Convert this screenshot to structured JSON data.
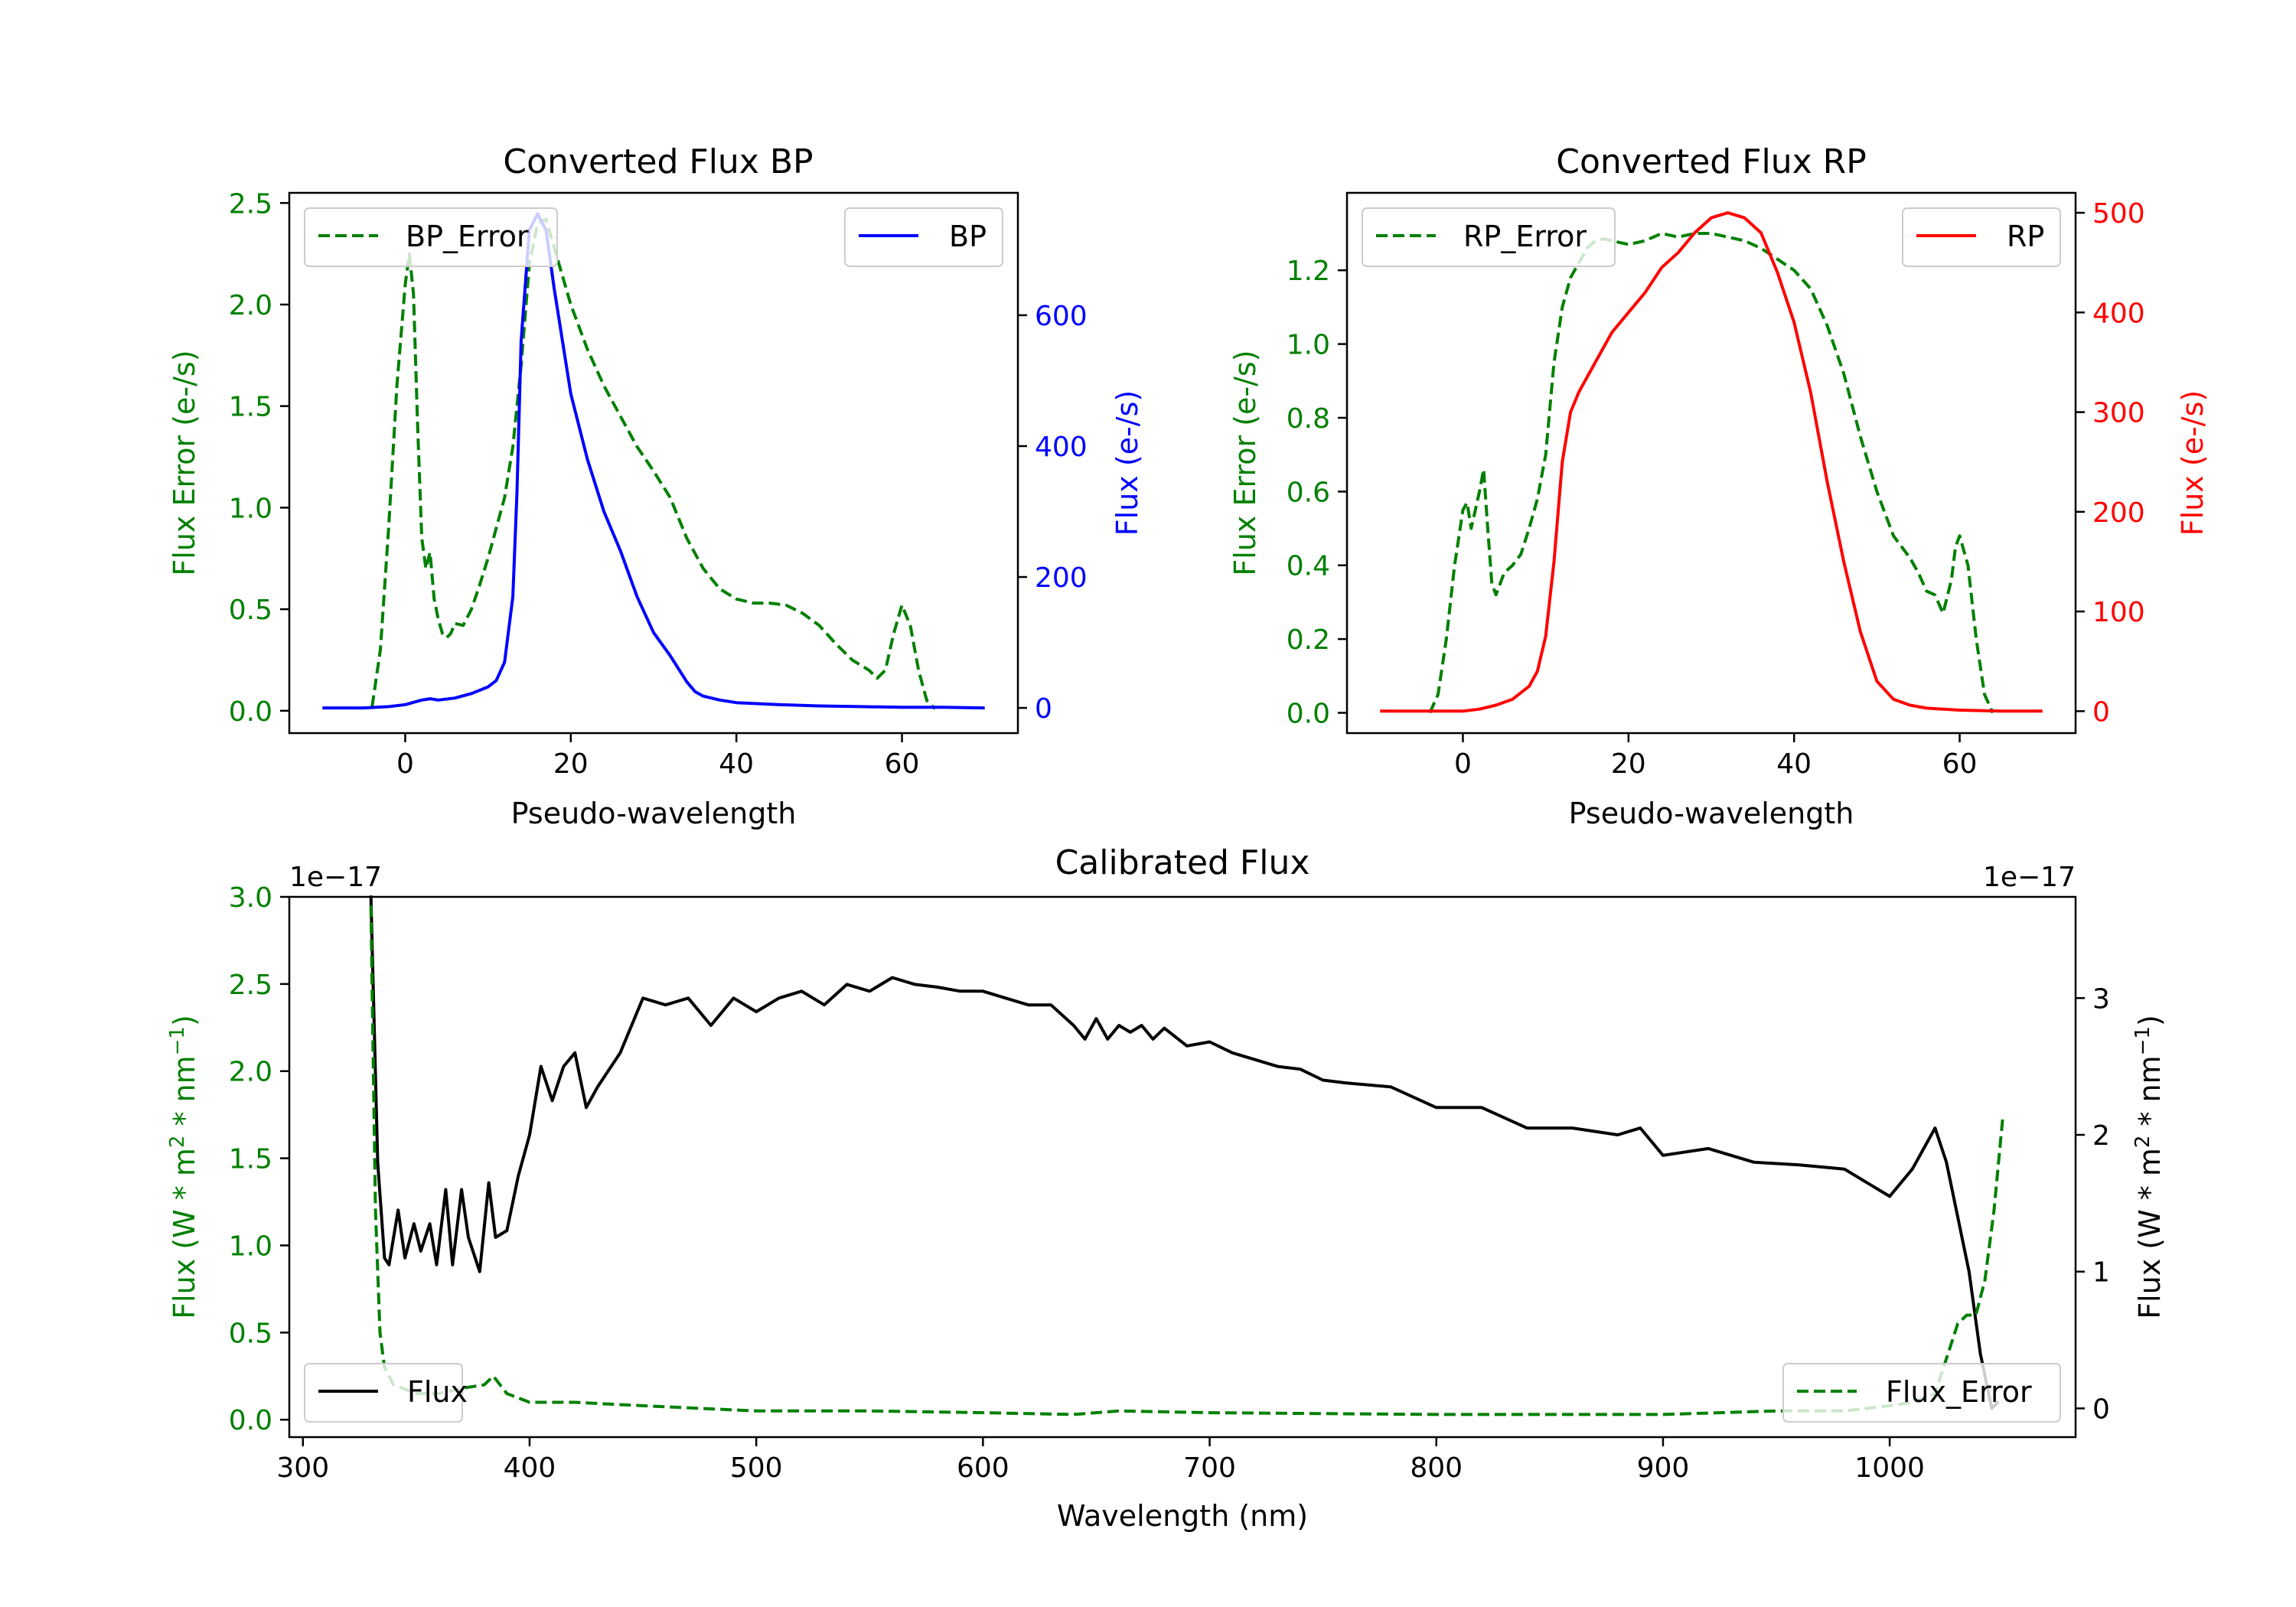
{
  "colors": {
    "bp": "#0000ff",
    "rp": "#ff0000",
    "error": "#008000",
    "flux": "#000000"
  },
  "chart_data": [
    {
      "id": "bp",
      "type": "line",
      "title": "Converted Flux BP",
      "xlabel": "Pseudo-wavelength",
      "ylabel_left": "Flux Error (e-/s)",
      "ylabel_right": "Flux (e-/s)",
      "xlim": [
        -14,
        74
      ],
      "ylim_left": [
        -0.11,
        2.55
      ],
      "ylim_right": [
        -38.5,
        787
      ],
      "xticks": [
        0,
        20,
        40,
        60
      ],
      "yticks_left": [
        0.0,
        0.5,
        1.0,
        1.5,
        2.0,
        2.5
      ],
      "yticks_left_labels": [
        "0.0",
        "0.5",
        "1.0",
        "1.5",
        "2.0",
        "2.5"
      ],
      "yticks_right": [
        0,
        200,
        400,
        600
      ],
      "yticks_right_labels": [
        "0",
        "200",
        "400",
        "600"
      ],
      "legend_left": "BP_Error",
      "legend_right": "BP",
      "error_series": {
        "name": "BP_Error",
        "x": [
          -4,
          -3,
          -2,
          -1,
          0,
          0.5,
          1,
          1.5,
          2,
          2.5,
          3,
          3.5,
          4,
          4.5,
          5,
          5.5,
          6,
          7,
          8,
          9,
          10,
          11,
          12,
          13,
          14,
          15,
          16,
          17,
          18,
          20,
          22,
          24,
          26,
          28,
          30,
          32,
          34,
          36,
          38,
          40,
          42,
          44,
          46,
          48,
          50,
          52,
          54,
          56,
          57,
          58,
          59,
          60,
          61,
          62,
          63,
          64
        ],
        "y": [
          0.02,
          0.3,
          0.9,
          1.6,
          2.1,
          2.25,
          2.05,
          1.4,
          0.85,
          0.7,
          0.78,
          0.55,
          0.45,
          0.38,
          0.36,
          0.38,
          0.43,
          0.42,
          0.5,
          0.62,
          0.75,
          0.9,
          1.05,
          1.3,
          1.7,
          2.2,
          2.4,
          2.42,
          2.28,
          2.0,
          1.78,
          1.6,
          1.45,
          1.3,
          1.18,
          1.05,
          0.85,
          0.7,
          0.6,
          0.55,
          0.53,
          0.53,
          0.52,
          0.48,
          0.42,
          0.33,
          0.25,
          0.2,
          0.16,
          0.2,
          0.38,
          0.52,
          0.42,
          0.2,
          0.05,
          0.01
        ]
      },
      "flux_series": {
        "name": "BP",
        "x": [
          -10,
          -5,
          -2,
          0,
          2,
          3,
          4,
          6,
          8,
          10,
          11,
          12,
          13,
          13.5,
          14,
          15,
          16,
          17,
          18,
          19,
          20,
          22,
          24,
          26,
          28,
          30,
          32,
          34,
          35,
          36,
          38,
          40,
          45,
          50,
          55,
          60,
          65,
          70
        ],
        "y": [
          0,
          0,
          2,
          5,
          12,
          14,
          12,
          15,
          22,
          32,
          42,
          70,
          170,
          330,
          560,
          730,
          755,
          730,
          640,
          560,
          480,
          380,
          300,
          240,
          170,
          115,
          80,
          40,
          25,
          18,
          12,
          8,
          5,
          3,
          2,
          1,
          1,
          0
        ]
      }
    },
    {
      "id": "rp",
      "type": "line",
      "title": "Converted Flux RP",
      "xlabel": "Pseudo-wavelength",
      "ylabel_left": "Flux Error (e-/s)",
      "ylabel_right": "Flux (e-/s)",
      "xlim": [
        -14,
        74
      ],
      "ylim_left": [
        -0.055,
        1.41
      ],
      "ylim_right": [
        -22,
        520
      ],
      "xticks": [
        0,
        20,
        40,
        60
      ],
      "yticks_left": [
        0.0,
        0.2,
        0.4,
        0.6,
        0.8,
        1.0,
        1.2
      ],
      "yticks_left_labels": [
        "0.0",
        "0.2",
        "0.4",
        "0.6",
        "0.8",
        "1.0",
        "1.2"
      ],
      "yticks_right": [
        0,
        100,
        200,
        300,
        400,
        500
      ],
      "yticks_right_labels": [
        "0",
        "100",
        "200",
        "300",
        "400",
        "500"
      ],
      "legend_left": "RP_Error",
      "legend_right": "RP",
      "error_series": {
        "name": "RP_Error",
        "x": [
          -4,
          -3,
          -2,
          -1,
          0,
          0.5,
          1,
          1.5,
          2,
          2.5,
          3,
          3.5,
          4,
          5,
          6,
          7,
          8,
          9,
          10,
          11,
          12,
          13,
          14,
          15,
          16,
          17,
          18,
          20,
          22,
          24,
          26,
          28,
          30,
          32,
          34,
          36,
          38,
          40,
          42,
          44,
          46,
          48,
          50,
          52,
          54,
          55,
          56,
          57,
          58,
          59,
          59.5,
          60,
          61,
          62,
          63,
          64
        ],
        "y": [
          0.0,
          0.05,
          0.2,
          0.4,
          0.55,
          0.57,
          0.5,
          0.55,
          0.6,
          0.66,
          0.5,
          0.35,
          0.32,
          0.38,
          0.4,
          0.43,
          0.5,
          0.58,
          0.7,
          0.95,
          1.1,
          1.18,
          1.22,
          1.26,
          1.28,
          1.285,
          1.28,
          1.27,
          1.28,
          1.3,
          1.29,
          1.3,
          1.3,
          1.29,
          1.28,
          1.26,
          1.23,
          1.2,
          1.15,
          1.05,
          0.92,
          0.75,
          0.6,
          0.48,
          0.42,
          0.38,
          0.33,
          0.32,
          0.27,
          0.36,
          0.45,
          0.48,
          0.4,
          0.2,
          0.05,
          0.0
        ]
      },
      "flux_series": {
        "name": "RP",
        "x": [
          -10,
          -5,
          -2,
          0,
          2,
          4,
          6,
          8,
          9,
          10,
          11,
          12,
          13,
          14,
          16,
          18,
          20,
          22,
          24,
          26,
          28,
          30,
          32,
          34,
          36,
          38,
          40,
          42,
          44,
          46,
          48,
          50,
          52,
          54,
          56,
          58,
          60,
          65,
          70
        ],
        "y": [
          0,
          0,
          0,
          0,
          2,
          6,
          12,
          25,
          40,
          75,
          150,
          250,
          300,
          320,
          350,
          380,
          400,
          420,
          445,
          460,
          480,
          495,
          500,
          495,
          480,
          440,
          390,
          320,
          230,
          150,
          80,
          30,
          12,
          6,
          3,
          2,
          1,
          0,
          0
        ]
      }
    },
    {
      "id": "calibrated",
      "type": "line",
      "title": "Calibrated Flux",
      "xlabel": "Wavelength (nm)",
      "ylabel_left": "Flux (W * m",
      "ylabel_right": "Flux (W * m",
      "ylabel_unit_mid": " * nm",
      "ylabel_exp2": "2",
      "ylabel_exp_m1": "−1",
      "ylabel_close": ")",
      "offset_left": "1e−17",
      "offset_right": "1e−17",
      "xlim": [
        294,
        1082
      ],
      "ylim_left": [
        -0.1,
        3.0
      ],
      "ylim_right": [
        -0.21,
        3.74
      ],
      "xticks": [
        300,
        400,
        500,
        600,
        700,
        800,
        900,
        1000
      ],
      "yticks_left": [
        0.0,
        0.5,
        1.0,
        1.5,
        2.0,
        2.5,
        3.0
      ],
      "yticks_left_labels": [
        "0.0",
        "0.5",
        "1.0",
        "1.5",
        "2.0",
        "2.5",
        "3.0"
      ],
      "yticks_right": [
        0,
        1,
        2,
        3
      ],
      "yticks_right_labels": [
        "0",
        "1",
        "2",
        "3"
      ],
      "legend_left": "Flux",
      "legend_right": "Flux_Error",
      "flux_series": {
        "name": "Flux",
        "x": [
          330,
          333,
          336,
          338,
          342,
          345,
          349,
          352,
          356,
          359,
          363,
          366,
          370,
          373,
          376,
          378,
          382,
          385,
          390,
          395,
          400,
          405,
          410,
          415,
          420,
          425,
          430,
          440,
          450,
          460,
          470,
          480,
          490,
          500,
          510,
          520,
          530,
          540,
          550,
          560,
          570,
          580,
          590,
          600,
          610,
          620,
          630,
          640,
          645,
          650,
          655,
          660,
          665,
          670,
          675,
          680,
          690,
          700,
          710,
          720,
          730,
          740,
          750,
          760,
          780,
          800,
          820,
          840,
          860,
          880,
          890,
          900,
          920,
          940,
          960,
          980,
          990,
          1000,
          1010,
          1020,
          1025,
          1030,
          1035,
          1040,
          1045,
          1048
        ],
        "y": [
          3.75,
          1.8,
          1.1,
          1.05,
          1.45,
          1.1,
          1.35,
          1.15,
          1.35,
          1.05,
          1.6,
          1.05,
          1.6,
          1.25,
          1.1,
          1.0,
          1.65,
          1.25,
          1.3,
          1.7,
          2.0,
          2.5,
          2.25,
          2.5,
          2.6,
          2.2,
          2.35,
          2.6,
          3.0,
          2.95,
          3.0,
          2.8,
          3.0,
          2.9,
          3.0,
          3.05,
          2.95,
          3.1,
          3.05,
          3.15,
          3.1,
          3.08,
          3.05,
          3.05,
          3.0,
          2.95,
          2.95,
          2.8,
          2.7,
          2.85,
          2.7,
          2.8,
          2.75,
          2.8,
          2.7,
          2.78,
          2.65,
          2.68,
          2.6,
          2.55,
          2.5,
          2.48,
          2.4,
          2.38,
          2.35,
          2.2,
          2.2,
          2.05,
          2.05,
          2.0,
          2.05,
          1.85,
          1.9,
          1.8,
          1.78,
          1.75,
          1.65,
          1.55,
          1.75,
          2.05,
          1.8,
          1.4,
          1.0,
          0.4,
          0.0,
          0.05
        ]
      },
      "error_series": {
        "name": "Flux_Error",
        "x": [
          330,
          332,
          334,
          336,
          340,
          350,
          360,
          370,
          380,
          384,
          390,
          400,
          420,
          450,
          500,
          550,
          600,
          640,
          660,
          700,
          800,
          900,
          950,
          980,
          1000,
          1010,
          1020,
          1025,
          1030,
          1034,
          1038,
          1042,
          1046,
          1050
        ],
        "y": [
          2.95,
          1.2,
          0.5,
          0.3,
          0.2,
          0.15,
          0.15,
          0.18,
          0.2,
          0.25,
          0.15,
          0.1,
          0.1,
          0.08,
          0.05,
          0.05,
          0.04,
          0.03,
          0.05,
          0.04,
          0.03,
          0.03,
          0.05,
          0.05,
          0.08,
          0.1,
          0.15,
          0.35,
          0.55,
          0.6,
          0.6,
          0.8,
          1.2,
          1.75
        ]
      }
    }
  ]
}
